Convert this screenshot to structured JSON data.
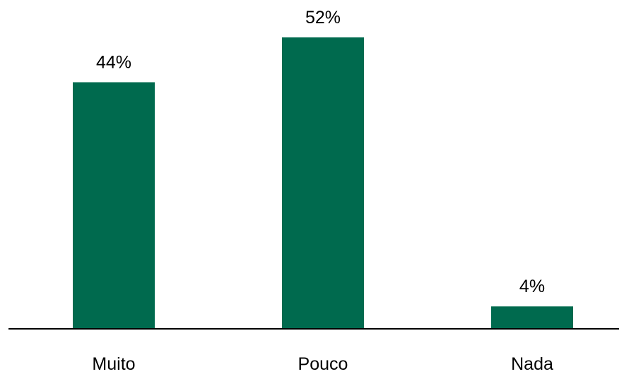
{
  "chart_data": {
    "type": "bar",
    "title": "",
    "xlabel": "",
    "ylabel": "",
    "categories": [
      "Muito",
      "Pouco",
      "Nada"
    ],
    "values": [
      44,
      52,
      4
    ],
    "data_labels": [
      "44%",
      "52%",
      "4%"
    ],
    "ylim": [
      0,
      52
    ],
    "grid": false,
    "legend": "none",
    "bar_color": "#006A4E",
    "axis_color": "#000000"
  }
}
